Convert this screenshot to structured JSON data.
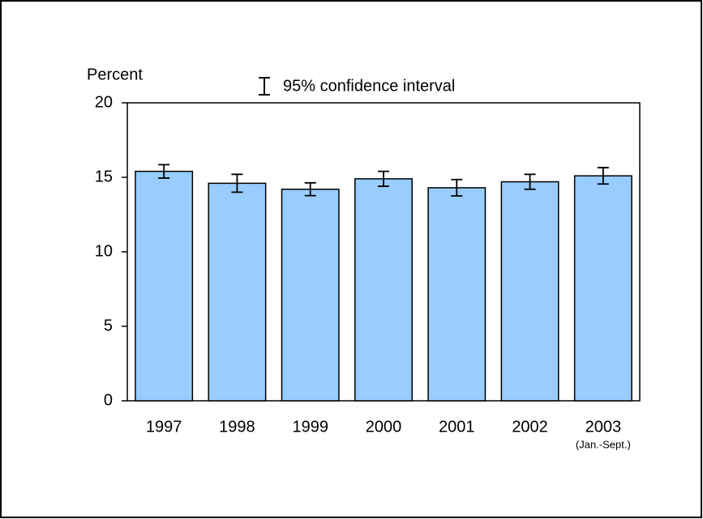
{
  "chart_data": {
    "type": "bar",
    "y_label": "Percent",
    "legend_label": "95% confidence interval",
    "categories": [
      "1997",
      "1998",
      "1999",
      "2000",
      "2001",
      "2002",
      "2003"
    ],
    "category_notes": [
      null,
      null,
      null,
      null,
      null,
      null,
      "(Jan.-Sept.)"
    ],
    "values": [
      15.4,
      14.6,
      14.2,
      14.9,
      14.3,
      14.7,
      15.1
    ],
    "errors": [
      0.45,
      0.6,
      0.43,
      0.5,
      0.55,
      0.5,
      0.55
    ],
    "color": "#99ccff",
    "ylim": [
      0,
      20
    ],
    "yticks": [
      0,
      5,
      10,
      15,
      20
    ],
    "grid": false
  }
}
